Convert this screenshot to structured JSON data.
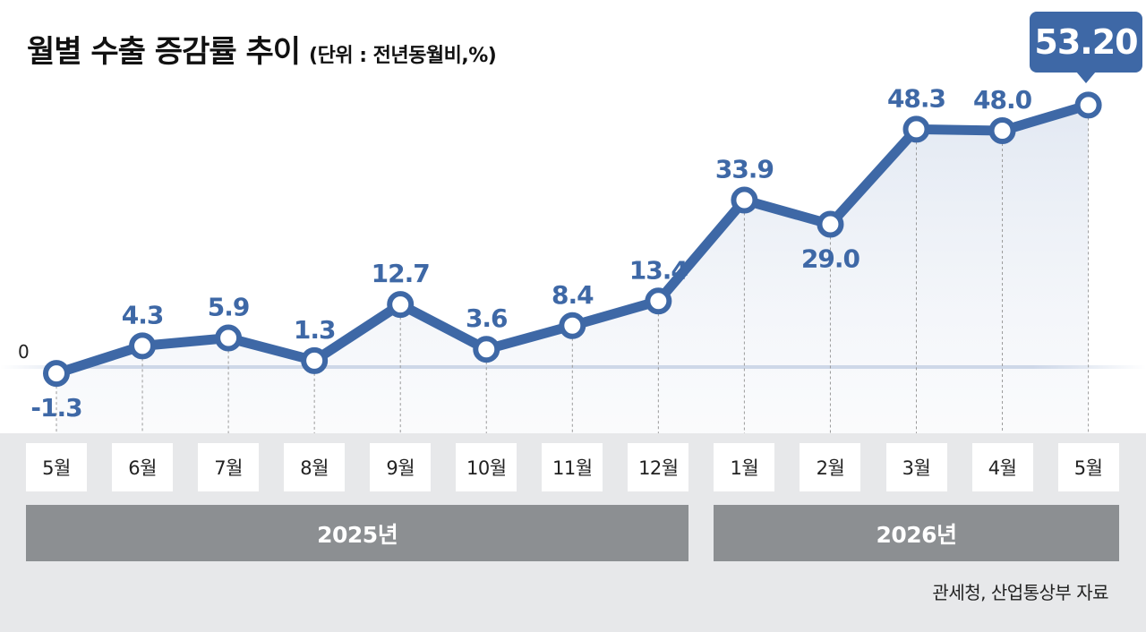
{
  "title": "월별 수출 증감률 추이",
  "subtitle": "(단위 : 전년동월비,%)",
  "source": "관세청, 산업통상부 자료",
  "callout": "53.20",
  "colors": {
    "line": "#3e68a6",
    "label": "#3e68a6",
    "band": "#e7e8ea",
    "year_bar": "#8c8f92"
  },
  "chart_data": {
    "type": "line",
    "title": "월별 수출 증감률 추이",
    "ylabel": "(단위 : 전년동월비,%)",
    "categories": [
      "5월",
      "6월",
      "7월",
      "8월",
      "9월",
      "10월",
      "11월",
      "12월",
      "1월",
      "2월",
      "3월",
      "4월",
      "5월"
    ],
    "values": [
      -1.3,
      4.3,
      5.9,
      1.3,
      12.7,
      3.6,
      8.4,
      13.4,
      33.9,
      29.0,
      48.3,
      48.0,
      53.2
    ],
    "value_labels": [
      "-1.3",
      "4.3",
      "5.9",
      "1.3",
      "12.7",
      "3.6",
      "8.4",
      "13.4",
      "33.9",
      "29.0",
      "48.3",
      "48.0",
      "53.20"
    ],
    "yticks": [
      "0"
    ],
    "year_groups": [
      {
        "label": "2025년",
        "months": [
          "5월",
          "6월",
          "7월",
          "8월",
          "9월",
          "10월",
          "11월",
          "12월"
        ]
      },
      {
        "label": "2026년",
        "months": [
          "1월",
          "2월",
          "3월",
          "4월",
          "5월"
        ]
      }
    ],
    "grid": false,
    "legend": "none"
  }
}
